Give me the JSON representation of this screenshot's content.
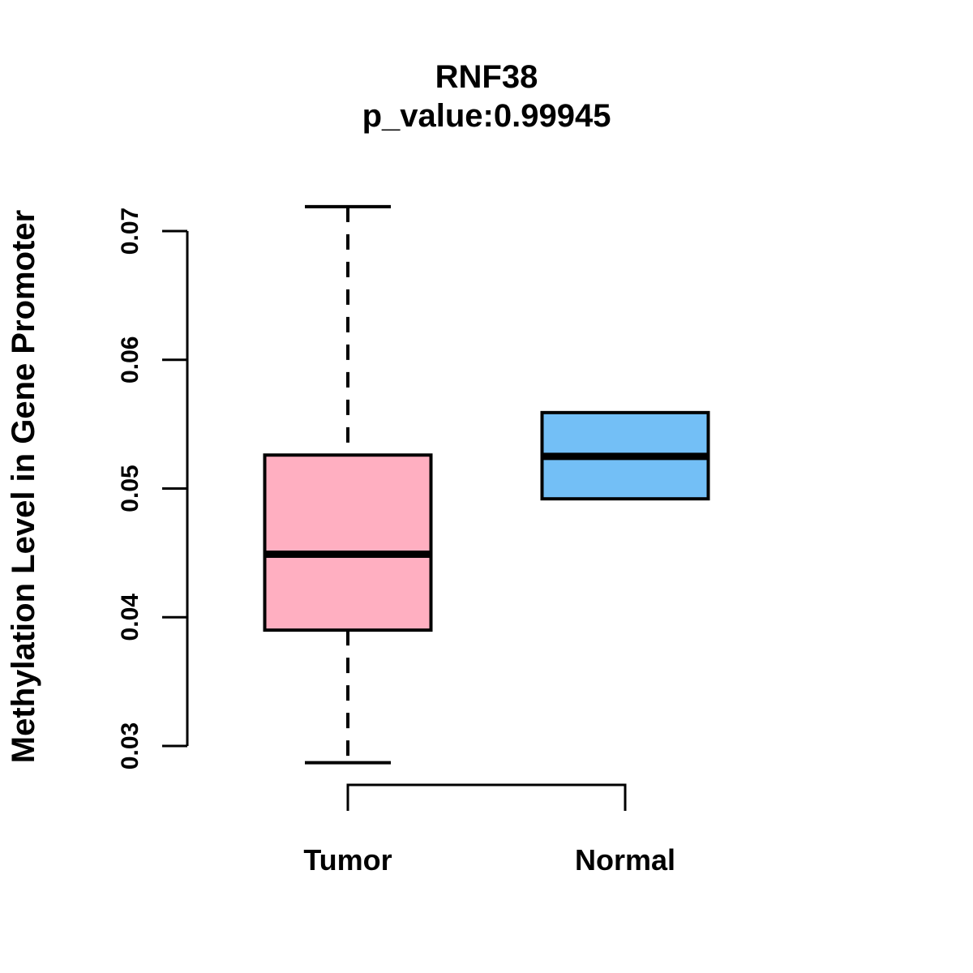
{
  "chart_data": {
    "type": "boxplot",
    "title": "RNF38",
    "subtitle": "p_value:0.99945",
    "ylabel": "Methylation Level in Gene Promoter",
    "xlabel": "",
    "categories": [
      "Tumor",
      "Normal"
    ],
    "yticks": [
      "0.03",
      "0.04",
      "0.05",
      "0.06",
      "0.07"
    ],
    "ylim": [
      0.0265,
      0.0735
    ],
    "grid": false,
    "legend_position": "none",
    "series": [
      {
        "name": "Tumor",
        "color": "#FFAFC1",
        "stats": {
          "whisker_low": 0.0287,
          "q1": 0.039,
          "median": 0.0449,
          "q3": 0.0526,
          "whisker_high": 0.0719
        }
      },
      {
        "name": "Normal",
        "color": "#73BFF6",
        "stats": {
          "whisker_low": 0.0492,
          "q1": 0.0492,
          "median": 0.0525,
          "q3": 0.0559,
          "whisker_high": 0.0559
        }
      }
    ],
    "colors": {
      "box_border": "#000000",
      "background": "#ffffff"
    }
  }
}
